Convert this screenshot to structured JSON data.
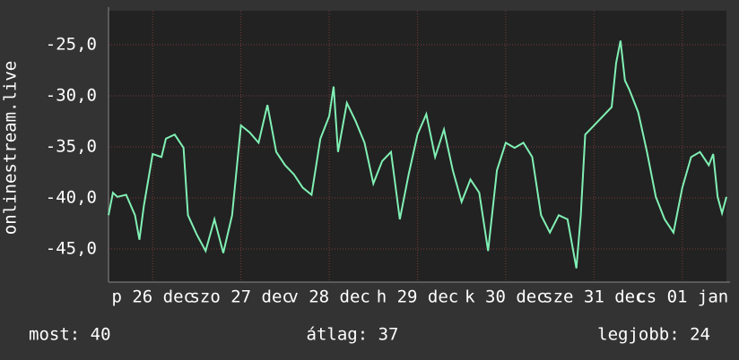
{
  "chart_data": {
    "type": "line",
    "ylabel": "onlinestream.live",
    "x": [
      0,
      0.05,
      0.1,
      0.2,
      0.3,
      0.35,
      0.4,
      0.5,
      0.6,
      0.65,
      0.75,
      0.85,
      0.9,
      1.0,
      1.1,
      1.2,
      1.3,
      1.4,
      1.5,
      1.6,
      1.7,
      1.8,
      1.9,
      2.0,
      2.1,
      2.2,
      2.3,
      2.4,
      2.5,
      2.55,
      2.6,
      2.7,
      2.8,
      2.9,
      3.0,
      3.1,
      3.2,
      3.3,
      3.4,
      3.5,
      3.6,
      3.7,
      3.8,
      3.9,
      4.0,
      4.1,
      4.2,
      4.3,
      4.4,
      4.5,
      4.6,
      4.7,
      4.8,
      4.9,
      5.0,
      5.1,
      5.2,
      5.3,
      5.35,
      5.4,
      5.5,
      5.6,
      5.7,
      5.75,
      5.8,
      5.85,
      5.9,
      6.0,
      6.1,
      6.2,
      6.3,
      6.4,
      6.5,
      6.6,
      6.7,
      6.8,
      6.85,
      6.9,
      6.95,
      7.0
    ],
    "series": [
      {
        "color": "#80f0b4",
        "values": [
          -41.7,
          -39.5,
          -39.9,
          -39.7,
          -41.7,
          -44.1,
          -40.8,
          -35.7,
          -36.0,
          -34.2,
          -33.8,
          -35.1,
          -41.7,
          -43.6,
          -45.2,
          -42.1,
          -45.4,
          -41.7,
          -32.9,
          -33.6,
          -34.6,
          -30.9,
          -35.5,
          -36.8,
          -37.7,
          -39.0,
          -39.7,
          -34.2,
          -32.0,
          -29.1,
          -35.5,
          -30.7,
          -32.5,
          -34.6,
          -38.6,
          -36.4,
          -35.5,
          -42.1,
          -37.7,
          -33.8,
          -31.8,
          -36.0,
          -33.3,
          -37.3,
          -40.4,
          -38.2,
          -39.5,
          -45.2,
          -37.3,
          -34.6,
          -35.1,
          -34.6,
          -36.0,
          -41.7,
          -43.4,
          -41.7,
          -42.1,
          -46.9,
          -41.7,
          -33.8,
          -32.9,
          -32.0,
          -31.1,
          -26.8,
          -24.6,
          -28.5,
          -29.4,
          -31.6,
          -35.5,
          -39.9,
          -42.1,
          -43.4,
          -39.0,
          -36.0,
          -35.5,
          -36.8,
          -35.7,
          -39.9,
          -41.5,
          -39.9
        ]
      }
    ],
    "xlim": [
      0,
      7
    ],
    "xticks": [
      {
        "value": 0.5,
        "label": "p 26 dec"
      },
      {
        "value": 1.5,
        "label": "szo 27 dec"
      },
      {
        "value": 2.5,
        "label": "v 28 dec"
      },
      {
        "value": 3.5,
        "label": "h 29 dec"
      },
      {
        "value": 4.5,
        "label": "k 30 dec"
      },
      {
        "value": 5.5,
        "label": "sze 31 dec"
      },
      {
        "value": 6.5,
        "label": "cs 01 jan"
      }
    ],
    "ylim": [
      -48.25,
      -21.67
    ],
    "yticks": [
      {
        "value": -45,
        "label": "-45,0"
      },
      {
        "value": -40,
        "label": "-40,0"
      },
      {
        "value": -35,
        "label": "-35,0"
      },
      {
        "value": -30,
        "label": "-30,0"
      },
      {
        "value": -25,
        "label": "-25,0"
      }
    ],
    "grid": true,
    "footer": [
      "most: 40",
      "átlag: 37",
      "legjobb: 24"
    ]
  }
}
